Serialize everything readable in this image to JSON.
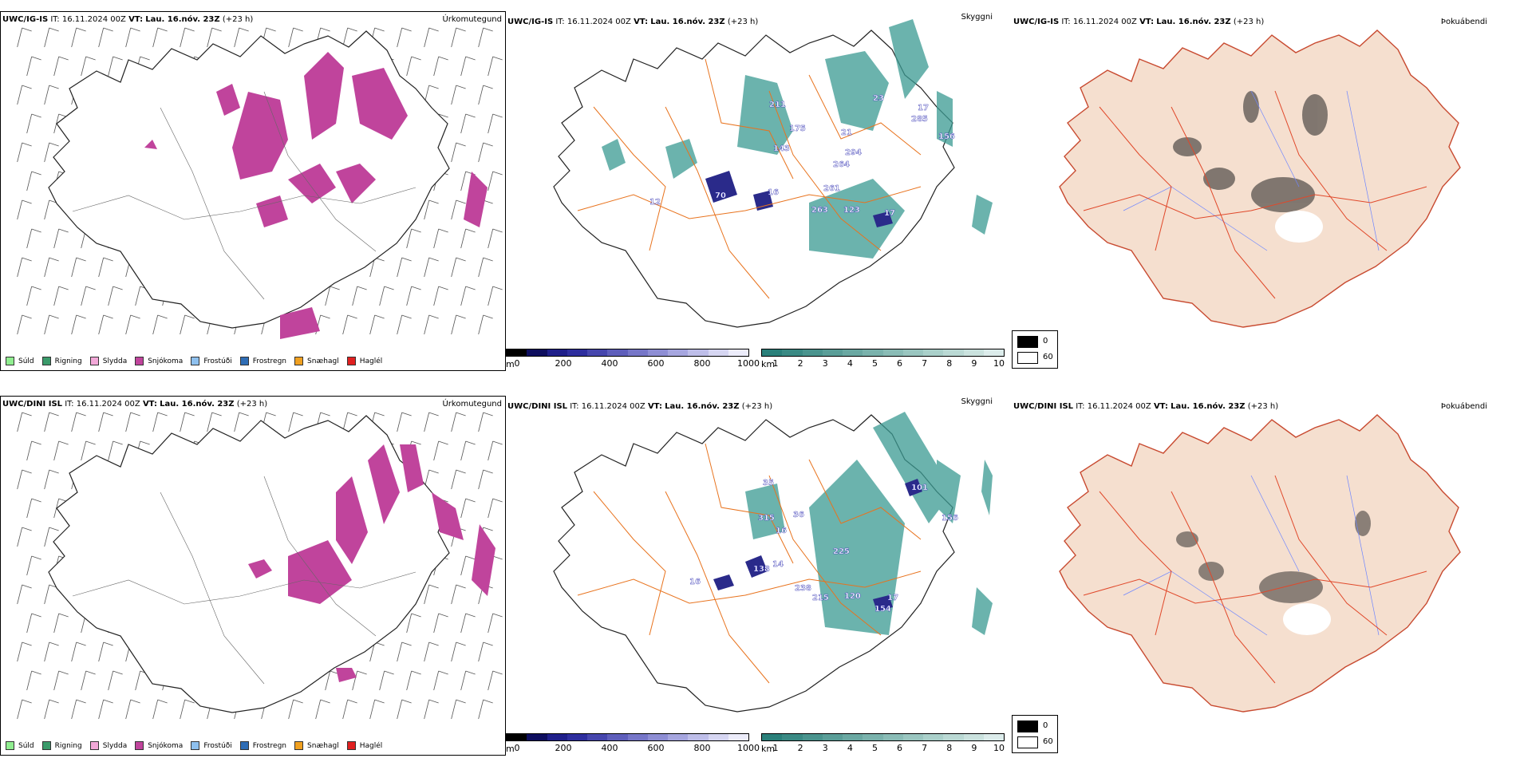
{
  "rows": [
    {
      "model": "UWC/IG-IS",
      "it": "IT: 16.11.2024 00Z",
      "vt_label": "VT:",
      "vt": "Lau. 16.nóv. 23Z",
      "lead": "(+23 h)"
    },
    {
      "model": "UWC/DINI ISL",
      "it": "IT: 16.11.2024 00Z",
      "vt_label": "VT:",
      "vt": "Lau. 16.nóv. 23Z",
      "lead": "(+23 h)"
    }
  ],
  "panel_titles": {
    "precip": "Úrkomutegund",
    "cloud": "Skyggni",
    "fog": "Þokuábendi"
  },
  "precip_legend": [
    {
      "label": "Súld",
      "color": "#90ee90"
    },
    {
      "label": "Rigning",
      "color": "#3a9a6a"
    },
    {
      "label": "Slydda",
      "color": "#f2a8d8"
    },
    {
      "label": "Snjókoma",
      "color": "#c0449c"
    },
    {
      "label": "Frostúði",
      "color": "#8ec0ee"
    },
    {
      "label": "Frostregn",
      "color": "#2f6db5"
    },
    {
      "label": "Snæhagl",
      "color": "#f0a020"
    },
    {
      "label": "Haglél",
      "color": "#e02020"
    }
  ],
  "colorbar_m": {
    "unit": "m",
    "ticks": [
      "0",
      "200",
      "400",
      "600",
      "800",
      "1000"
    ],
    "colors": [
      "#000000",
      "#0e0e5e",
      "#1f1f8a",
      "#2e2e9e",
      "#4646ad",
      "#5e5ebb",
      "#7676c8",
      "#8e8ed4",
      "#a6a6df",
      "#bebee9",
      "#d6d6f2",
      "#ececfa"
    ]
  },
  "colorbar_km": {
    "unit": "km",
    "ticks": [
      "1",
      "2",
      "3",
      "4",
      "5",
      "6",
      "7",
      "8",
      "9",
      "10"
    ],
    "colors": [
      "#2a807a",
      "#3a8a84",
      "#4a948e",
      "#5a9e98",
      "#6aa8a2",
      "#7ab2ac",
      "#8abcb6",
      "#9ac6c0",
      "#aad0ca",
      "#bad9d4",
      "#cae2de",
      "#dceceb"
    ]
  },
  "fog_legend": {
    "items": [
      {
        "value": "0",
        "color": "#000000"
      },
      {
        "value": "60",
        "color": "#ffffff"
      }
    ]
  },
  "ceiling_labels": [
    [
      "211",
      "143",
      "175",
      "21",
      "294",
      "264",
      "261",
      "263",
      "123",
      "17",
      "70",
      "16",
      "12",
      "285",
      "156",
      "23",
      "17"
    ],
    [
      "35",
      "315",
      "16",
      "36",
      "138",
      "14",
      "225",
      "238",
      "215",
      "120",
      "17",
      "154",
      "101",
      "156",
      "16"
    ]
  ],
  "map_colors": {
    "snow": "#c0449c",
    "land_fog": "#f5dfcf",
    "roads": "#e8731e",
    "rivers": "#6e86ff",
    "fog_roads": "#e0482a"
  }
}
